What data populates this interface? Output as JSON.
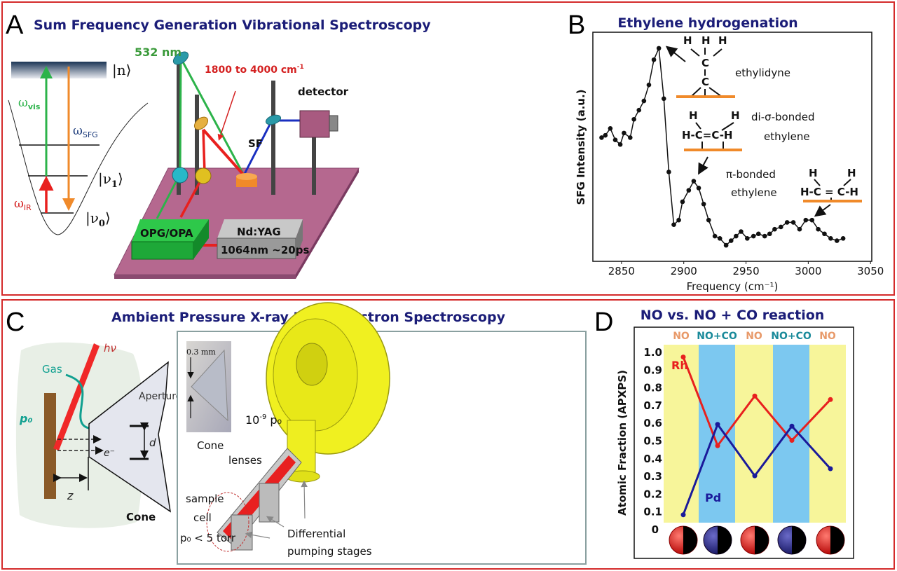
{
  "panels": {
    "a": {
      "letter": "A",
      "title": "Sum Frequency Generation Vibrational Spectroscopy",
      "state_n": "|n⟩",
      "state_v1": "|ν",
      "state_v1_sub": "1",
      "state_v0": "|ν",
      "state_v0_sub": "0",
      "omega_vis": "ω",
      "omega_vis_sub": "vis",
      "omega_sfg": "ω",
      "omega_sfg_sub": "SFG",
      "omega_ir": "ω",
      "omega_ir_sub": "IR",
      "visible_beam": "532 nm",
      "ir_range": "1800 to 4000 cm",
      "ir_range_sup": "-1",
      "detector": "detector",
      "sf": "SF",
      "opg": "OPG/OPA",
      "ndyag": "Nd:YAG",
      "ndyag_spec": "1064nm ~20ps"
    },
    "b": {
      "letter": "B",
      "ethylidyne": "ethylidyne",
      "di_sigma_1": "di-σ-bonded",
      "di_sigma_2": "ethylene",
      "pi_1": "π-bonded",
      "pi_2": "ethylene",
      "mol_h": "H",
      "mol_c": "C",
      "mol_hcch": "H-C=C-H",
      "mol_hcch_pi": "H-C = C-H"
    },
    "c": {
      "letter": "C",
      "title": "Ambient Pressure X-ray Photoelectron Spectroscopy",
      "hv": "hν",
      "gas": "Gas",
      "p0": "p₀",
      "aperture": "Aperture",
      "d": "d",
      "electron": "e⁻",
      "z": "z",
      "cone_bold": "Cone",
      "scale": "0.3 mm",
      "cone_photo": "Cone",
      "vacuum": "10",
      "vacuum_sup": "-9",
      "vacuum_p": " p₀",
      "lenses": "lenses",
      "sample": "sample",
      "cell": "cell",
      "pressure": "p₀ < 5 torr",
      "diff1": "Differential",
      "diff2": "pumping stages"
    },
    "d": {
      "letter": "D"
    }
  },
  "colors": {
    "frame": "#d42a2a",
    "title": "#1b1d78",
    "green_beam": "#2cb34a",
    "red_beam": "#e8201e",
    "blue_beam": "#1a2fc0",
    "orange": "#f08a2a",
    "table": "#b5688f",
    "rh": "#e8201e",
    "pd": "#1a1a9a",
    "band_no": "#f7f59a",
    "band_noco": "#7cc8f0"
  },
  "chart_data": [
    {
      "type": "line",
      "title": "Ethylene hydrogenation",
      "xlabel": "Frequency (cm⁻¹)",
      "ylabel": "SFG Intensity (a.u.)",
      "xlim": [
        2827,
        3051
      ],
      "ylim": [
        0,
        1
      ],
      "xticks": [
        2850,
        2900,
        2950,
        3000,
        3050
      ],
      "grid": false,
      "markers": "filled-circle",
      "x": [
        2834,
        2837,
        2841,
        2845,
        2849,
        2852,
        2857,
        2860,
        2864,
        2868,
        2872,
        2876,
        2880,
        2884,
        2888,
        2892,
        2896,
        2899,
        2904,
        2908,
        2912,
        2916,
        2920,
        2925,
        2929,
        2934,
        2938,
        2942,
        2946,
        2951,
        2956,
        2960,
        2965,
        2969,
        2973,
        2978,
        2983,
        2988,
        2993,
        2998,
        3003,
        3008,
        3013,
        3018,
        3023,
        3028
      ],
      "y": [
        0.54,
        0.55,
        0.58,
        0.53,
        0.51,
        0.56,
        0.54,
        0.62,
        0.66,
        0.7,
        0.77,
        0.88,
        0.93,
        0.71,
        0.39,
        0.16,
        0.18,
        0.26,
        0.31,
        0.35,
        0.32,
        0.25,
        0.18,
        0.11,
        0.1,
        0.07,
        0.09,
        0.11,
        0.13,
        0.1,
        0.11,
        0.12,
        0.11,
        0.12,
        0.14,
        0.15,
        0.17,
        0.17,
        0.14,
        0.18,
        0.18,
        0.14,
        0.12,
        0.1,
        0.09,
        0.1
      ]
    },
    {
      "type": "line",
      "title": "NO vs. NO + CO reaction",
      "ylabel": "Atomic Fraction (APXPS)",
      "ylim": [
        0,
        1.0
      ],
      "yticks": [
        "0",
        "0.1",
        "0.2",
        "0.3",
        "0.4",
        "0.5",
        "0.6",
        "0.7",
        "0.8",
        "0.9",
        "1.0"
      ],
      "categories": [
        "NO",
        "NO+CO",
        "NO",
        "NO+CO",
        "NO"
      ],
      "series": [
        {
          "name": "Rh",
          "color": "#e8201e",
          "values": [
            0.97,
            0.47,
            0.75,
            0.5,
            0.73
          ]
        },
        {
          "name": "Pd",
          "color": "#1a1a9a",
          "values": [
            0.08,
            0.59,
            0.3,
            0.58,
            0.34
          ]
        }
      ],
      "bottom_markers": [
        "Rh",
        "Pd",
        "Rh",
        "Pd",
        "Rh"
      ]
    }
  ]
}
